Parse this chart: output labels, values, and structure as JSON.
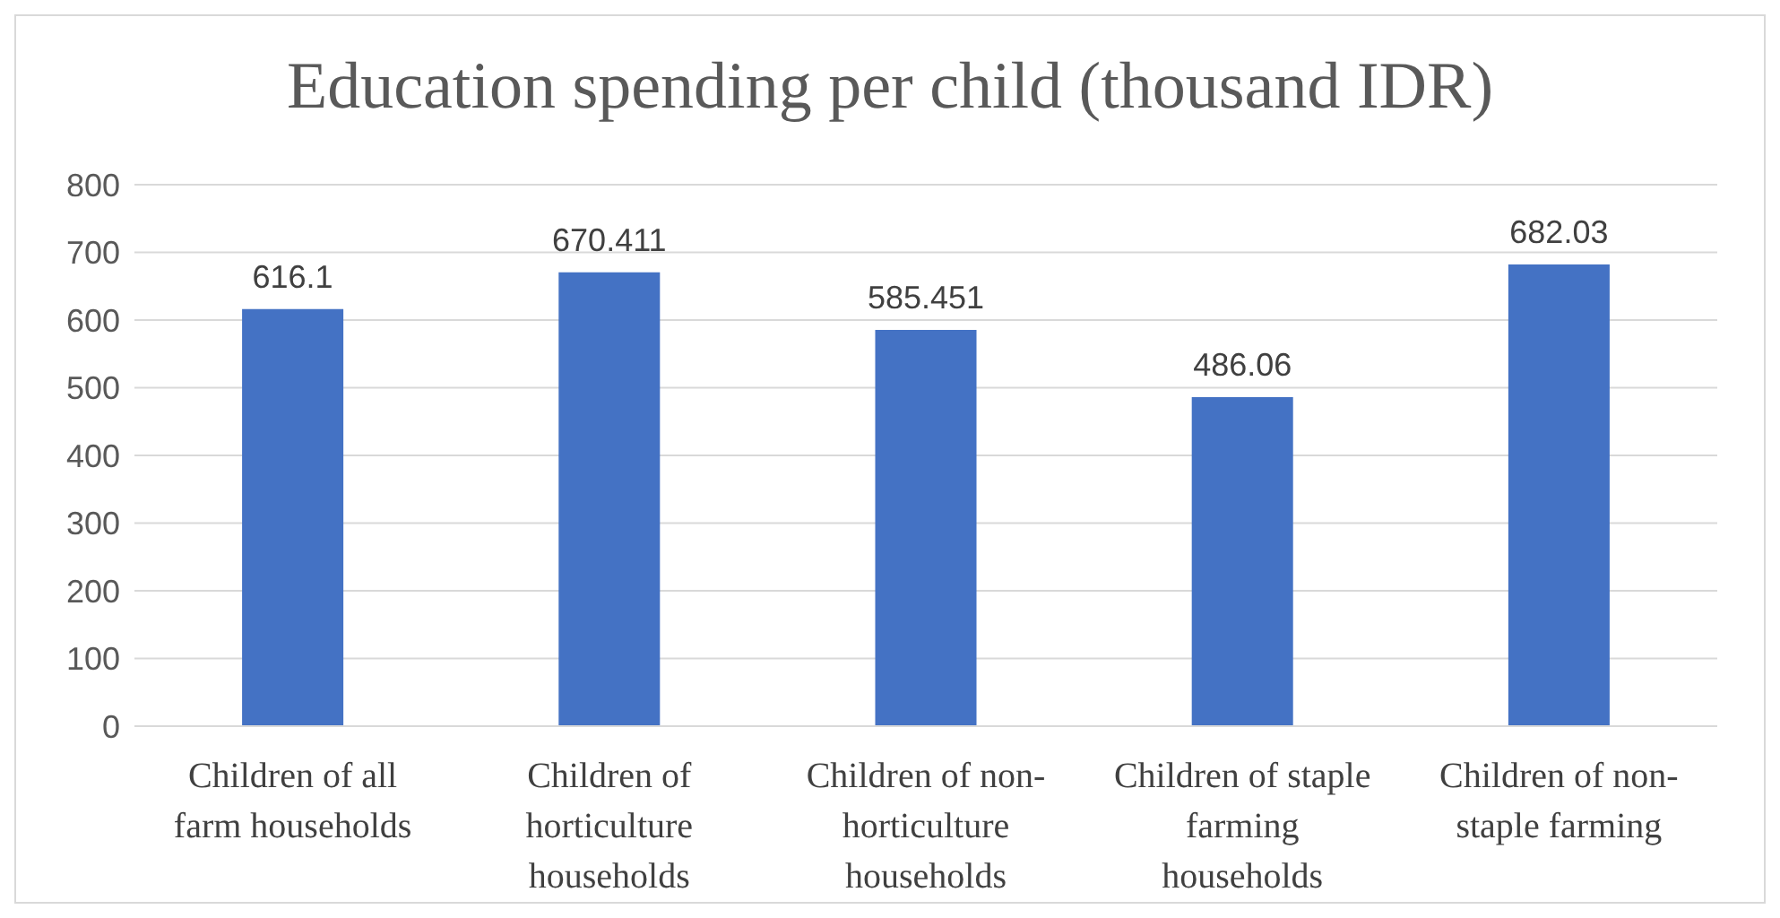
{
  "chart_data": {
    "type": "bar",
    "title": "Education spending per child (thousand IDR)",
    "categories": [
      "Children of all farm households",
      "Children of horticulture households",
      "Children of non-horticulture households",
      "Children of staple farming households",
      "Children of non-staple farming"
    ],
    "values": [
      616.1,
      670.411,
      585.451,
      486.06,
      682.03
    ],
    "color": "#4472c4",
    "ylim": [
      0,
      800
    ],
    "yticks": [
      0,
      100,
      200,
      300,
      400,
      500,
      600,
      700,
      800
    ],
    "grid": "y",
    "data_labels": true
  }
}
